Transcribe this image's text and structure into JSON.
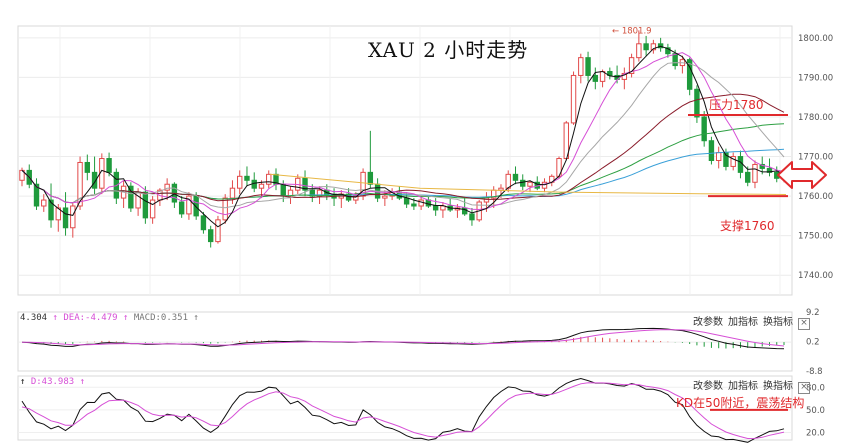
{
  "title": "XAU 2 小时走势",
  "annotations": {
    "resistance": "压力1780",
    "support": "支撑1760",
    "peak_label": "1801.9",
    "kd_note": "KD在50附近，震荡结构"
  },
  "colors": {
    "up": "#e24a4a",
    "down": "#1f9a3c",
    "ma_black": "#111111",
    "ma_magenta": "#d64fd6",
    "ma_gray": "#a7a7a7",
    "ma_maroon": "#8a1c2b",
    "ma_green": "#2ea043",
    "ma_blue": "#3aa0d8",
    "ma_orange": "#e8b845",
    "level_line": "#e0292c"
  },
  "macd_header": {
    "dif": "4.304",
    "dea": "DEA:-4.479",
    "macd": "MACD:0.351"
  },
  "kd_header": {
    "d": "D:43.983"
  },
  "panel_buttons": [
    "改参数",
    "加指标",
    "换指标"
  ],
  "close_icon": "×",
  "chart_data": [
    {
      "type": "candlestick",
      "title": "XAU 2 小时走势",
      "ylim": [
        1735,
        1803
      ],
      "yticks": [
        "1800.00",
        "1790.00",
        "1780.00",
        "1770.00",
        "1760.00",
        "1750.00",
        "1740.00"
      ],
      "ytick_values": [
        1800,
        1790,
        1780,
        1770,
        1760,
        1750,
        1740
      ],
      "levels": [
        {
          "name": "压力1780",
          "value": 1780.5
        },
        {
          "name": "支撑1760",
          "value": 1760
        }
      ],
      "candles": [
        [
          1764.0,
          1767.2,
          1762.5,
          1766.5
        ],
        [
          1766.5,
          1768.0,
          1762.0,
          1763.0
        ],
        [
          1763.0,
          1764.5,
          1756.5,
          1757.5
        ],
        [
          1757.5,
          1760.5,
          1756.0,
          1759.0
        ],
        [
          1759.0,
          1763.2,
          1752.0,
          1754.0
        ],
        [
          1754.0,
          1758.0,
          1751.0,
          1757.0
        ],
        [
          1757.0,
          1761.0,
          1750.0,
          1752.0
        ],
        [
          1752.0,
          1758.2,
          1749.5,
          1757.5
        ],
        [
          1757.5,
          1770.0,
          1756.5,
          1768.5
        ],
        [
          1768.5,
          1770.5,
          1764.0,
          1766.0
        ],
        [
          1766.0,
          1770.0,
          1760.5,
          1762.0
        ],
        [
          1762.0,
          1770.8,
          1760.5,
          1769.5
        ],
        [
          1769.5,
          1771.0,
          1765.0,
          1766.0
        ],
        [
          1766.0,
          1767.0,
          1758.0,
          1759.5
        ],
        [
          1759.5,
          1764.0,
          1757.0,
          1762.5
        ],
        [
          1762.5,
          1763.5,
          1756.0,
          1757.0
        ],
        [
          1757.0,
          1762.0,
          1755.0,
          1761.0
        ],
        [
          1761.0,
          1762.5,
          1753.0,
          1754.5
        ],
        [
          1754.5,
          1760.0,
          1753.0,
          1759.0
        ],
        [
          1759.0,
          1762.0,
          1757.5,
          1761.5
        ],
        [
          1761.5,
          1764.5,
          1759.0,
          1763.0
        ],
        [
          1763.0,
          1763.5,
          1757.0,
          1758.5
        ],
        [
          1758.5,
          1760.0,
          1754.5,
          1755.5
        ],
        [
          1755.5,
          1761.0,
          1754.0,
          1760.0
        ],
        [
          1760.0,
          1761.0,
          1754.0,
          1755.0
        ],
        [
          1755.0,
          1756.0,
          1750.5,
          1751.5
        ],
        [
          1751.5,
          1752.5,
          1747.0,
          1748.5
        ],
        [
          1748.5,
          1755.0,
          1748.0,
          1754.0
        ],
        [
          1754.0,
          1760.5,
          1753.0,
          1759.5
        ],
        [
          1759.5,
          1764.0,
          1758.0,
          1762.0
        ],
        [
          1762.0,
          1766.5,
          1760.5,
          1765.0
        ],
        [
          1765.0,
          1767.5,
          1762.5,
          1764.0
        ],
        [
          1764.0,
          1766.0,
          1761.0,
          1762.0
        ],
        [
          1762.0,
          1764.0,
          1759.5,
          1763.0
        ],
        [
          1763.0,
          1766.5,
          1762.0,
          1765.5
        ],
        [
          1765.5,
          1767.0,
          1761.5,
          1763.0
        ],
        [
          1763.0,
          1764.0,
          1758.5,
          1760.0
        ],
        [
          1760.0,
          1762.5,
          1758.0,
          1761.5
        ],
        [
          1761.5,
          1765.5,
          1760.5,
          1764.5
        ],
        [
          1764.5,
          1766.5,
          1760.0,
          1761.5
        ],
        [
          1761.5,
          1763.0,
          1758.5,
          1760.0
        ],
        [
          1760.0,
          1762.5,
          1758.0,
          1761.5
        ],
        [
          1761.5,
          1763.0,
          1759.0,
          1760.5
        ],
        [
          1760.5,
          1762.0,
          1757.5,
          1759.5
        ],
        [
          1759.5,
          1761.5,
          1757.0,
          1760.5
        ],
        [
          1760.5,
          1762.0,
          1758.5,
          1759.0
        ],
        [
          1759.0,
          1761.0,
          1758.0,
          1760.0
        ],
        [
          1760.0,
          1767.0,
          1759.0,
          1766.0
        ],
        [
          1766.0,
          1776.5,
          1762.0,
          1763.0
        ],
        [
          1763.0,
          1764.5,
          1758.5,
          1759.5
        ],
        [
          1759.5,
          1761.5,
          1757.5,
          1760.0
        ],
        [
          1760.0,
          1762.0,
          1759.0,
          1761.0
        ],
        [
          1761.0,
          1762.5,
          1759.0,
          1759.5
        ],
        [
          1759.5,
          1761.0,
          1757.0,
          1758.0
        ],
        [
          1758.0,
          1759.5,
          1756.5,
          1757.5
        ],
        [
          1757.5,
          1760.0,
          1756.5,
          1759.0
        ],
        [
          1759.0,
          1760.0,
          1757.0,
          1757.5
        ],
        [
          1757.5,
          1759.5,
          1755.0,
          1756.5
        ],
        [
          1756.5,
          1758.5,
          1754.5,
          1757.5
        ],
        [
          1757.5,
          1759.5,
          1756.0,
          1756.5
        ],
        [
          1756.5,
          1758.0,
          1754.5,
          1757.0
        ],
        [
          1757.0,
          1759.5,
          1755.0,
          1755.5
        ],
        [
          1755.5,
          1757.0,
          1752.5,
          1754.0
        ],
        [
          1754.0,
          1759.0,
          1753.5,
          1758.5
        ],
        [
          1758.5,
          1761.0,
          1756.0,
          1759.5
        ],
        [
          1759.5,
          1762.5,
          1757.0,
          1761.5
        ],
        [
          1761.5,
          1763.0,
          1759.5,
          1762.0
        ],
        [
          1762.0,
          1766.5,
          1761.0,
          1765.5
        ],
        [
          1765.5,
          1767.5,
          1763.0,
          1764.0
        ],
        [
          1764.0,
          1765.5,
          1761.5,
          1762.5
        ],
        [
          1762.5,
          1764.0,
          1761.0,
          1763.5
        ],
        [
          1763.5,
          1765.0,
          1761.5,
          1762.0
        ],
        [
          1762.0,
          1764.5,
          1761.0,
          1763.5
        ],
        [
          1763.5,
          1765.5,
          1762.5,
          1765.0
        ],
        [
          1765.0,
          1770.0,
          1764.5,
          1769.5
        ],
        [
          1769.5,
          1779.0,
          1769.0,
          1778.5
        ],
        [
          1778.5,
          1791.5,
          1778.0,
          1790.5
        ],
        [
          1790.5,
          1796.0,
          1788.5,
          1795.0
        ],
        [
          1795.0,
          1796.5,
          1789.0,
          1790.5
        ],
        [
          1790.5,
          1792.5,
          1787.0,
          1789.0
        ],
        [
          1789.0,
          1792.0,
          1787.5,
          1791.5
        ],
        [
          1791.5,
          1792.5,
          1789.5,
          1790.5
        ],
        [
          1790.5,
          1793.0,
          1788.5,
          1789.5
        ],
        [
          1789.5,
          1792.5,
          1787.0,
          1791.0
        ],
        [
          1791.0,
          1796.0,
          1790.0,
          1795.0
        ],
        [
          1795.0,
          1801.9,
          1794.0,
          1798.5
        ],
        [
          1798.5,
          1800.5,
          1795.5,
          1797.0
        ],
        [
          1797.0,
          1799.5,
          1796.0,
          1798.5
        ],
        [
          1798.5,
          1800.0,
          1796.5,
          1797.5
        ],
        [
          1797.5,
          1798.5,
          1795.0,
          1796.0
        ],
        [
          1796.0,
          1797.0,
          1792.0,
          1793.0
        ],
        [
          1793.0,
          1795.5,
          1791.0,
          1794.5
        ],
        [
          1794.5,
          1795.0,
          1785.5,
          1787.0
        ],
        [
          1787.0,
          1788.0,
          1778.5,
          1780.0
        ],
        [
          1780.0,
          1781.5,
          1772.5,
          1774.0
        ],
        [
          1774.0,
          1775.0,
          1768.0,
          1769.0
        ],
        [
          1769.0,
          1772.5,
          1767.0,
          1771.0
        ],
        [
          1771.0,
          1772.0,
          1766.5,
          1767.5
        ],
        [
          1767.5,
          1771.0,
          1766.5,
          1770.0
        ],
        [
          1770.0,
          1771.5,
          1764.5,
          1766.0
        ],
        [
          1766.0,
          1767.5,
          1762.5,
          1763.5
        ],
        [
          1763.5,
          1769.0,
          1762.0,
          1768.0
        ],
        [
          1768.0,
          1770.0,
          1765.5,
          1767.0
        ],
        [
          1767.0,
          1769.5,
          1765.0,
          1766.0
        ],
        [
          1766.0,
          1767.5,
          1763.5,
          1764.5
        ],
        [
          1764.5,
          1766.0,
          1763.5,
          1765.0
        ]
      ]
    },
    {
      "type": "line",
      "name": "MACD",
      "yticks": [
        "9.2",
        "0.2",
        "-8.8"
      ],
      "ytick_values": [
        9.2,
        0.2,
        -8.8
      ]
    },
    {
      "type": "line",
      "name": "KD",
      "yticks": [
        "80.0",
        "50.0",
        "20.0"
      ],
      "ytick_values": [
        80,
        50,
        20
      ]
    }
  ]
}
